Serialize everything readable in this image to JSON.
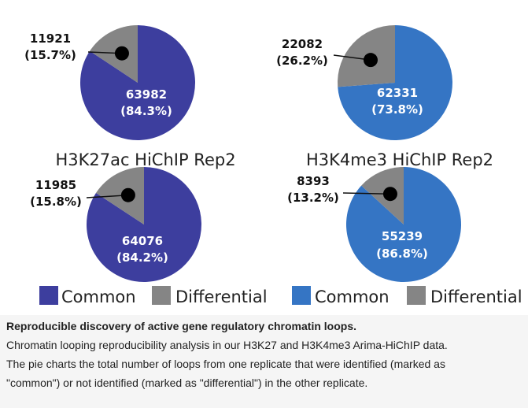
{
  "colors": {
    "common_h3k27ac": "#3d3e9e",
    "common_h3k4me3": "#3575c4",
    "differential": "#858585"
  },
  "chart_data": [
    {
      "type": "pie",
      "title": "",
      "slices": [
        {
          "name": "Common",
          "value": 63982,
          "label": "63982",
          "percent": "(84.3%)"
        },
        {
          "name": "Differential",
          "value": 11921,
          "label": "11921",
          "percent": "(15.7%)"
        }
      ],
      "legend": [
        "Common",
        "Differential"
      ]
    },
    {
      "type": "pie",
      "title": "",
      "slices": [
        {
          "name": "Common",
          "value": 62331,
          "label": "62331",
          "percent": "(73.8%)"
        },
        {
          "name": "Differential",
          "value": 22082,
          "label": "22082",
          "percent": "(26.2%)"
        }
      ],
      "legend": [
        "Common",
        "Differential"
      ]
    },
    {
      "type": "pie",
      "title": "H3K27ac HiChIP Rep2",
      "slices": [
        {
          "name": "Common",
          "value": 64076,
          "label": "64076",
          "percent": "(84.2%)"
        },
        {
          "name": "Differential",
          "value": 11985,
          "label": "11985",
          "percent": "(15.8%)"
        }
      ],
      "legend": [
        "Common",
        "Differential"
      ]
    },
    {
      "type": "pie",
      "title": "H3K4me3 HiChIP Rep2",
      "slices": [
        {
          "name": "Common",
          "value": 55239,
          "label": "55239",
          "percent": "(86.8%)"
        },
        {
          "name": "Differential",
          "value": 8393,
          "label": "8393",
          "percent": "(13.2%)"
        }
      ],
      "legend": [
        "Common",
        "Differential"
      ]
    }
  ],
  "legends": [
    {
      "common": "Common",
      "differential": "Differential"
    },
    {
      "common": "Common",
      "differential": "Differential"
    }
  ],
  "caption": {
    "title": "Reproducible discovery of active gene regulatory chromatin loops.",
    "line1": "Chromatin looping reproducibility analysis in our H3K27 and H3K4me3 Arima-HiChIP data.",
    "line2": "The pie charts the total number of loops from one replicate that were identified (marked as",
    "line3": "\"common\") or not identified (marked as \"differential\") in the other replicate."
  }
}
